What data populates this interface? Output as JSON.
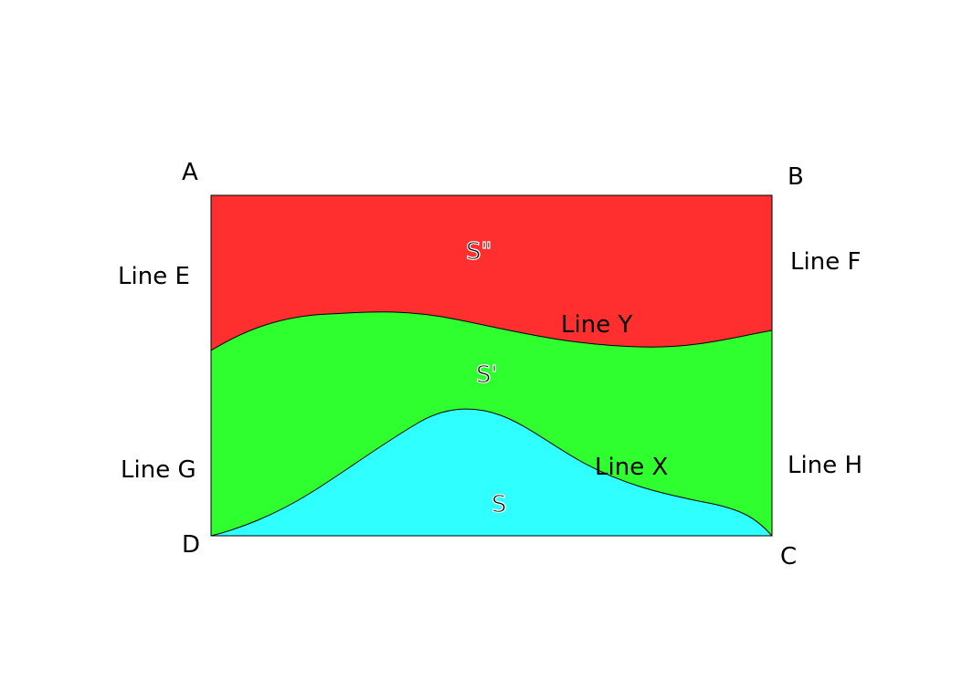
{
  "colors": {
    "top_region": "#ff2f2f",
    "middle_region": "#2fff2f",
    "bottom_region": "#2fffff",
    "outline": "#000000",
    "boundary_curves": "#ffffff"
  },
  "corners": {
    "a": "A",
    "b": "B",
    "c": "C",
    "d": "D"
  },
  "side_lines": {
    "e": "Line E",
    "f": "Line F",
    "g": "Line G",
    "h": "Line H"
  },
  "curves": {
    "x": "Line X",
    "y": "Line Y"
  },
  "regions": {
    "s": "S",
    "s_prime": "S'",
    "s_double_prime": "S\""
  }
}
